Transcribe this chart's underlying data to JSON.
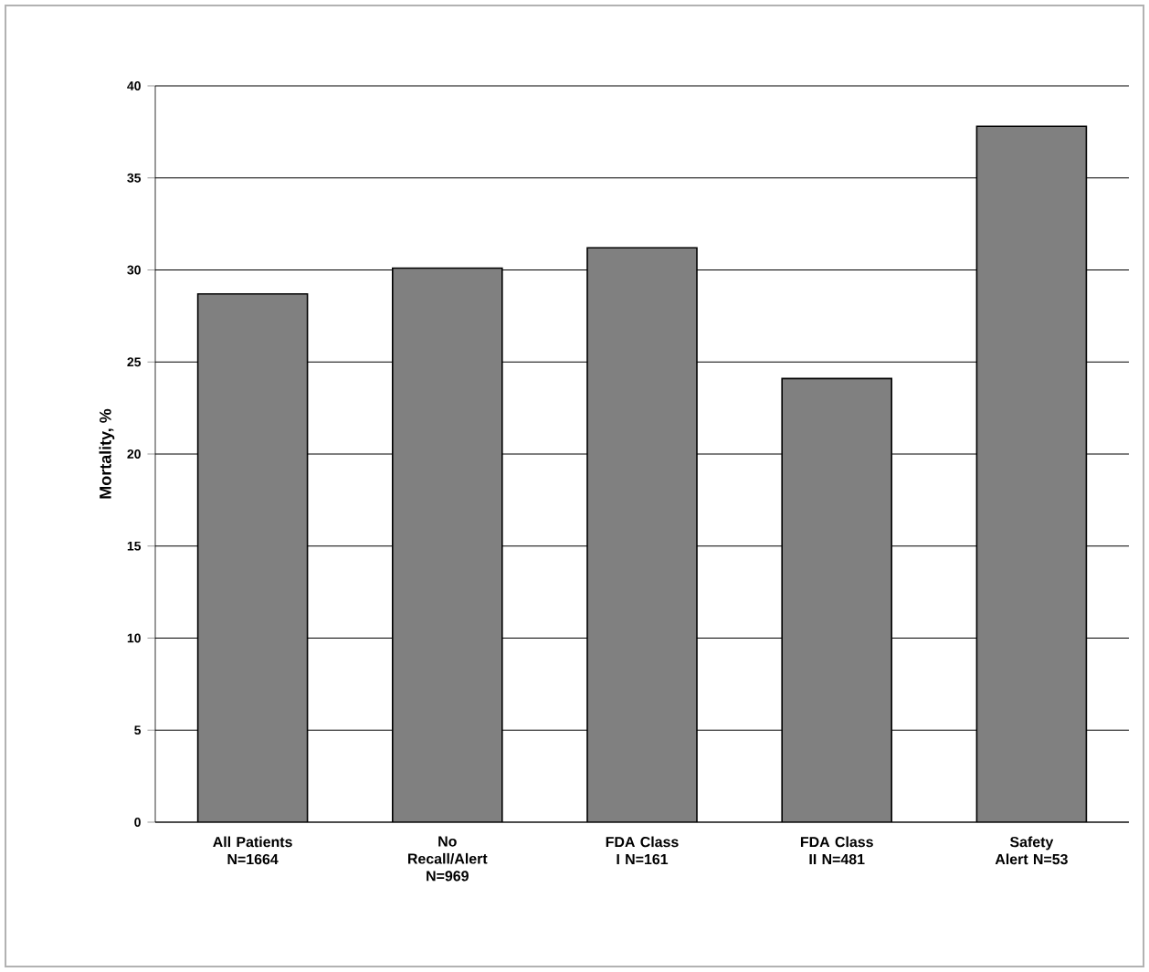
{
  "chart_data": {
    "type": "bar",
    "ylabel": "Mortality, %",
    "categories": [
      "All Patients N=1664",
      "No Recall/Alert N=969",
      "FDA Class I N=161",
      "FDA Class II N=481",
      "Safety Alert N=53"
    ],
    "values": [
      28.7,
      30.1,
      31.2,
      24.1,
      37.8
    ],
    "color": "#808080",
    "ylim": [
      0,
      40
    ],
    "yticks": [
      0,
      5,
      10,
      15,
      20,
      25,
      30,
      35,
      40
    ],
    "grid": "y"
  }
}
